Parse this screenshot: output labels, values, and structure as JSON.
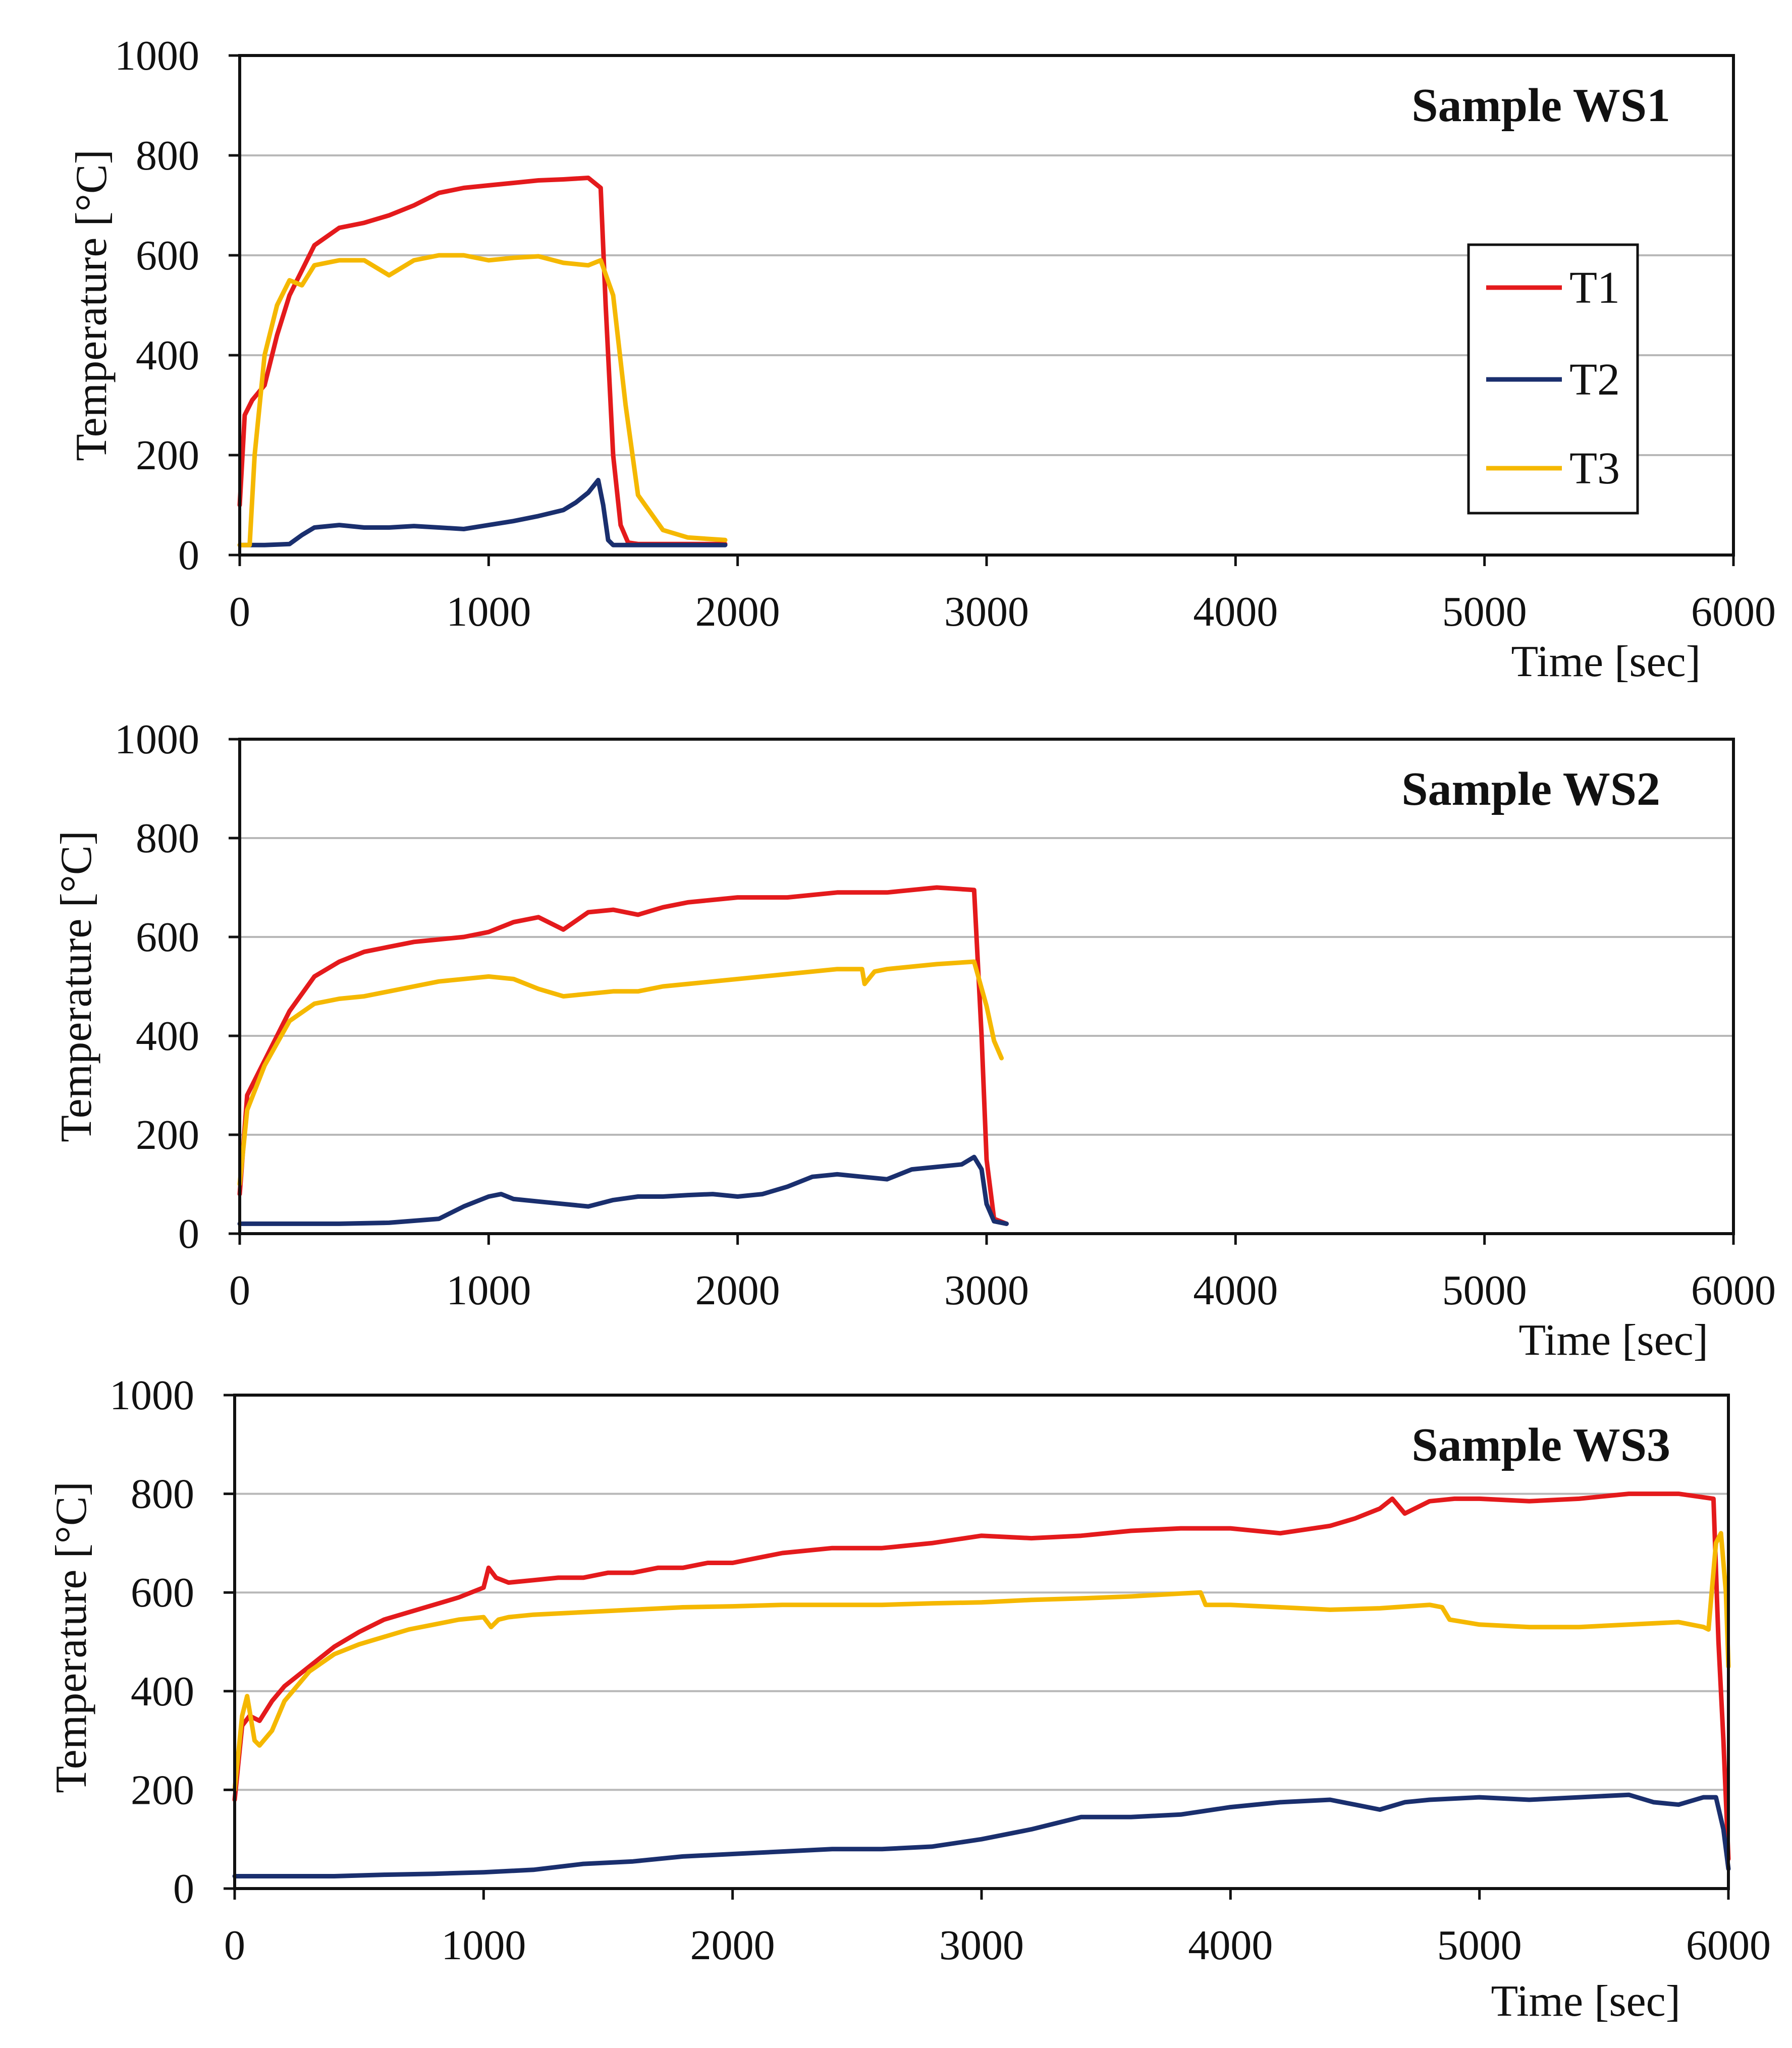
{
  "chart_data": [
    {
      "type": "line",
      "title": "Sample WS1",
      "xlabel": "Time [sec]",
      "ylabel": "Temperature [°C]",
      "xlim": [
        0,
        6000
      ],
      "ylim": [
        0,
        1000
      ],
      "xticks": [
        0,
        1000,
        2000,
        3000,
        4000,
        5000,
        6000
      ],
      "yticks": [
        0,
        200,
        400,
        600,
        800,
        1000
      ],
      "grid": true,
      "legend": {
        "position": "right",
        "entries": [
          "T1",
          "T2",
          "T3"
        ]
      },
      "series": [
        {
          "name": "T1",
          "color": "#e41a1c",
          "x": [
            0,
            20,
            50,
            100,
            150,
            200,
            300,
            400,
            500,
            600,
            700,
            800,
            900,
            1000,
            1100,
            1200,
            1300,
            1400,
            1450,
            1470,
            1500,
            1530,
            1560,
            1600,
            1800,
            1950
          ],
          "y": [
            100,
            280,
            310,
            340,
            440,
            520,
            620,
            655,
            665,
            680,
            700,
            725,
            735,
            740,
            745,
            750,
            752,
            755,
            735,
            500,
            200,
            60,
            25,
            22,
            22,
            22
          ]
        },
        {
          "name": "T2",
          "color": "#1a2f6e",
          "x": [
            0,
            30,
            100,
            200,
            250,
            300,
            400,
            500,
            600,
            700,
            800,
            900,
            1000,
            1100,
            1200,
            1300,
            1350,
            1400,
            1440,
            1460,
            1480,
            1500,
            1600,
            1800,
            1950
          ],
          "y": [
            20,
            20,
            20,
            22,
            40,
            55,
            60,
            55,
            55,
            58,
            55,
            52,
            60,
            68,
            78,
            90,
            105,
            125,
            150,
            100,
            30,
            20,
            20,
            20,
            20
          ]
        },
        {
          "name": "T3",
          "color": "#f5b800",
          "x": [
            0,
            40,
            60,
            100,
            150,
            200,
            250,
            300,
            400,
            500,
            600,
            700,
            800,
            900,
            1000,
            1100,
            1200,
            1300,
            1400,
            1450,
            1500,
            1550,
            1600,
            1700,
            1800,
            1950
          ],
          "y": [
            20,
            20,
            200,
            400,
            500,
            550,
            540,
            580,
            590,
            590,
            560,
            590,
            600,
            600,
            590,
            595,
            598,
            585,
            580,
            590,
            520,
            300,
            120,
            50,
            35,
            30
          ]
        }
      ]
    },
    {
      "type": "line",
      "title": "Sample WS2",
      "xlabel": "Time [sec]",
      "ylabel": "Temperature [°C]",
      "xlim": [
        0,
        6000
      ],
      "ylim": [
        0,
        1000
      ],
      "xticks": [
        0,
        1000,
        2000,
        3000,
        4000,
        5000,
        6000
      ],
      "yticks": [
        0,
        200,
        400,
        600,
        800,
        1000
      ],
      "grid": true,
      "series": [
        {
          "name": "T1",
          "color": "#e41a1c",
          "x": [
            0,
            30,
            100,
            200,
            300,
            400,
            500,
            600,
            700,
            800,
            900,
            1000,
            1100,
            1200,
            1300,
            1400,
            1500,
            1600,
            1700,
            1800,
            1900,
            2000,
            2200,
            2400,
            2600,
            2800,
            2950,
            2980,
            3000,
            3030,
            3080
          ],
          "y": [
            80,
            280,
            350,
            450,
            520,
            550,
            570,
            580,
            590,
            595,
            600,
            610,
            630,
            640,
            615,
            650,
            655,
            645,
            660,
            670,
            675,
            680,
            680,
            690,
            690,
            700,
            695,
            400,
            150,
            30,
            20
          ]
        },
        {
          "name": "T2",
          "color": "#1a2f6e",
          "x": [
            0,
            200,
            400,
            600,
            800,
            900,
            1000,
            1050,
            1100,
            1200,
            1300,
            1400,
            1500,
            1600,
            1700,
            1800,
            1900,
            2000,
            2100,
            2200,
            2300,
            2400,
            2500,
            2600,
            2700,
            2800,
            2900,
            2950,
            2980,
            3000,
            3030,
            3080
          ],
          "y": [
            20,
            20,
            20,
            22,
            30,
            55,
            75,
            80,
            70,
            65,
            60,
            55,
            68,
            75,
            75,
            78,
            80,
            75,
            80,
            95,
            115,
            120,
            115,
            110,
            130,
            135,
            140,
            155,
            130,
            60,
            25,
            20
          ]
        },
        {
          "name": "T3",
          "color": "#f5b800",
          "x": [
            0,
            30,
            100,
            200,
            300,
            400,
            500,
            600,
            700,
            800,
            900,
            1000,
            1100,
            1200,
            1300,
            1400,
            1500,
            1600,
            1700,
            1800,
            1900,
            2000,
            2200,
            2400,
            2500,
            2510,
            2550,
            2600,
            2800,
            2950,
            3000,
            3030,
            3060
          ],
          "y": [
            100,
            250,
            340,
            430,
            465,
            475,
            480,
            490,
            500,
            510,
            515,
            520,
            515,
            495,
            480,
            485,
            490,
            490,
            500,
            505,
            510,
            515,
            525,
            535,
            535,
            505,
            530,
            535,
            545,
            550,
            460,
            390,
            355
          ]
        }
      ]
    },
    {
      "type": "line",
      "title": "Sample WS3",
      "xlabel": "Time [sec]",
      "ylabel": "Temperature [°C]",
      "xlim": [
        0,
        6000
      ],
      "ylim": [
        0,
        1000
      ],
      "xticks": [
        0,
        1000,
        2000,
        3000,
        4000,
        5000,
        6000
      ],
      "yticks": [
        0,
        200,
        400,
        600,
        800,
        1000
      ],
      "grid": true,
      "series": [
        {
          "name": "T1",
          "color": "#e41a1c",
          "x": [
            0,
            30,
            60,
            100,
            150,
            200,
            300,
            400,
            500,
            600,
            700,
            800,
            900,
            1000,
            1020,
            1050,
            1100,
            1200,
            1300,
            1400,
            1500,
            1600,
            1700,
            1800,
            1900,
            2000,
            2200,
            2400,
            2600,
            2800,
            3000,
            3200,
            3400,
            3600,
            3800,
            4000,
            4200,
            4400,
            4500,
            4600,
            4650,
            4700,
            4800,
            4900,
            5000,
            5200,
            5400,
            5600,
            5800,
            5940,
            5960,
            5980,
            6000
          ],
          "y": [
            180,
            330,
            350,
            340,
            380,
            410,
            450,
            490,
            520,
            545,
            560,
            575,
            590,
            610,
            650,
            630,
            620,
            625,
            630,
            630,
            640,
            640,
            650,
            650,
            660,
            660,
            680,
            690,
            690,
            700,
            715,
            710,
            715,
            725,
            730,
            730,
            720,
            735,
            750,
            770,
            790,
            760,
            785,
            790,
            790,
            785,
            790,
            800,
            800,
            790,
            500,
            300,
            60
          ]
        },
        {
          "name": "T2",
          "color": "#1a2f6e",
          "x": [
            0,
            200,
            400,
            600,
            800,
            1000,
            1200,
            1400,
            1600,
            1800,
            2000,
            2200,
            2400,
            2600,
            2800,
            3000,
            3200,
            3400,
            3600,
            3800,
            4000,
            4200,
            4400,
            4500,
            4600,
            4700,
            4800,
            5000,
            5200,
            5400,
            5600,
            5700,
            5800,
            5900,
            5950,
            5980,
            6000
          ],
          "y": [
            25,
            25,
            25,
            28,
            30,
            33,
            38,
            50,
            55,
            65,
            70,
            75,
            80,
            80,
            85,
            100,
            120,
            145,
            145,
            150,
            165,
            175,
            180,
            170,
            160,
            175,
            180,
            185,
            180,
            185,
            190,
            175,
            170,
            185,
            185,
            120,
            40
          ]
        },
        {
          "name": "T3",
          "color": "#f5b800",
          "x": [
            0,
            30,
            50,
            80,
            100,
            150,
            200,
            300,
            400,
            500,
            600,
            700,
            800,
            900,
            1000,
            1030,
            1060,
            1100,
            1200,
            1400,
            1600,
            1800,
            2000,
            2200,
            2400,
            2600,
            2800,
            3000,
            3200,
            3400,
            3600,
            3800,
            3880,
            3900,
            4000,
            4200,
            4400,
            4600,
            4800,
            4850,
            4880,
            5000,
            5200,
            5400,
            5600,
            5800,
            5900,
            5920,
            5950,
            5970,
            5990,
            6000
          ],
          "y": [
            200,
            350,
            390,
            300,
            290,
            320,
            380,
            440,
            475,
            495,
            510,
            525,
            535,
            545,
            550,
            530,
            545,
            550,
            555,
            560,
            565,
            570,
            572,
            575,
            575,
            575,
            578,
            580,
            585,
            588,
            592,
            598,
            600,
            575,
            575,
            570,
            565,
            568,
            575,
            570,
            545,
            535,
            530,
            530,
            535,
            540,
            530,
            525,
            700,
            720,
            600,
            450
          ]
        }
      ]
    }
  ]
}
